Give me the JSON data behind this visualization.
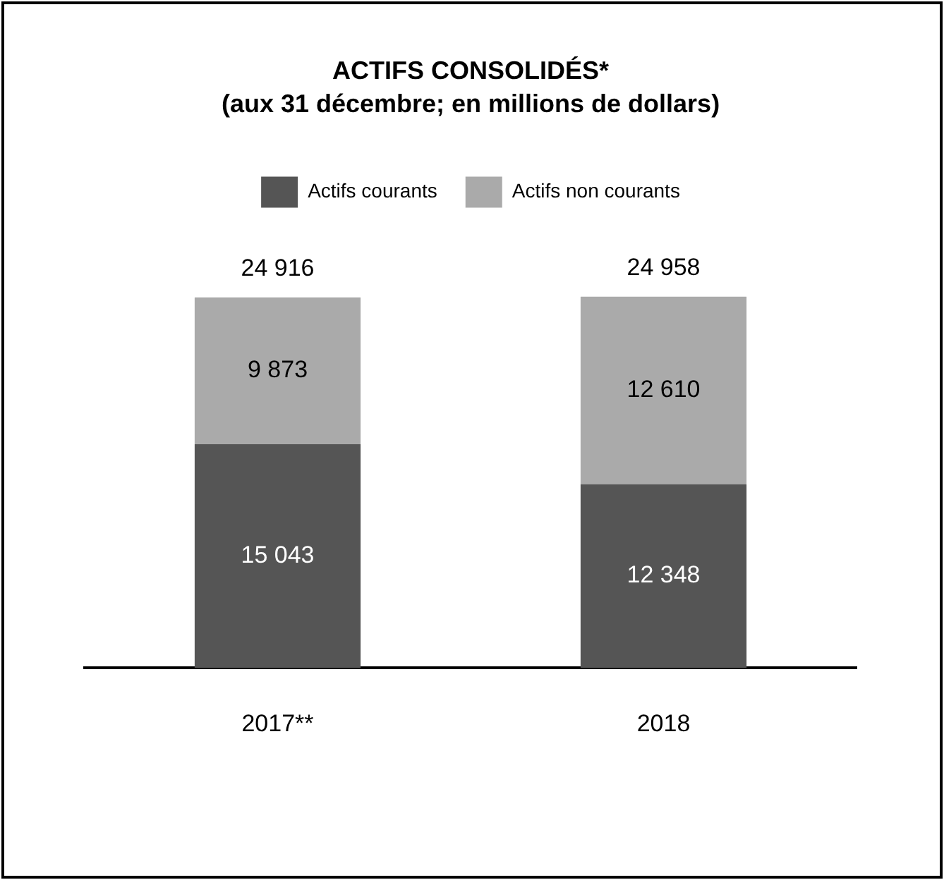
{
  "chart_data": {
    "type": "bar",
    "title": "ACTIFS CONSOLIDÉS*",
    "subtitle": "(aux 31 décembre; en millions de dollars)",
    "categories": [
      "2017**",
      "2018"
    ],
    "stacked": true,
    "series": [
      {
        "name": "Actifs courants",
        "color": "#555555",
        "values": [
          15043,
          12348
        ],
        "value_labels": [
          "15 043",
          "12 348"
        ]
      },
      {
        "name": "Actifs non courants",
        "color": "#aaaaaa",
        "values": [
          9873,
          12610
        ],
        "value_labels": [
          "9 873",
          "12 610"
        ]
      }
    ],
    "totals": [
      "24 916",
      "24 958"
    ],
    "legend": "top",
    "grid": false
  }
}
